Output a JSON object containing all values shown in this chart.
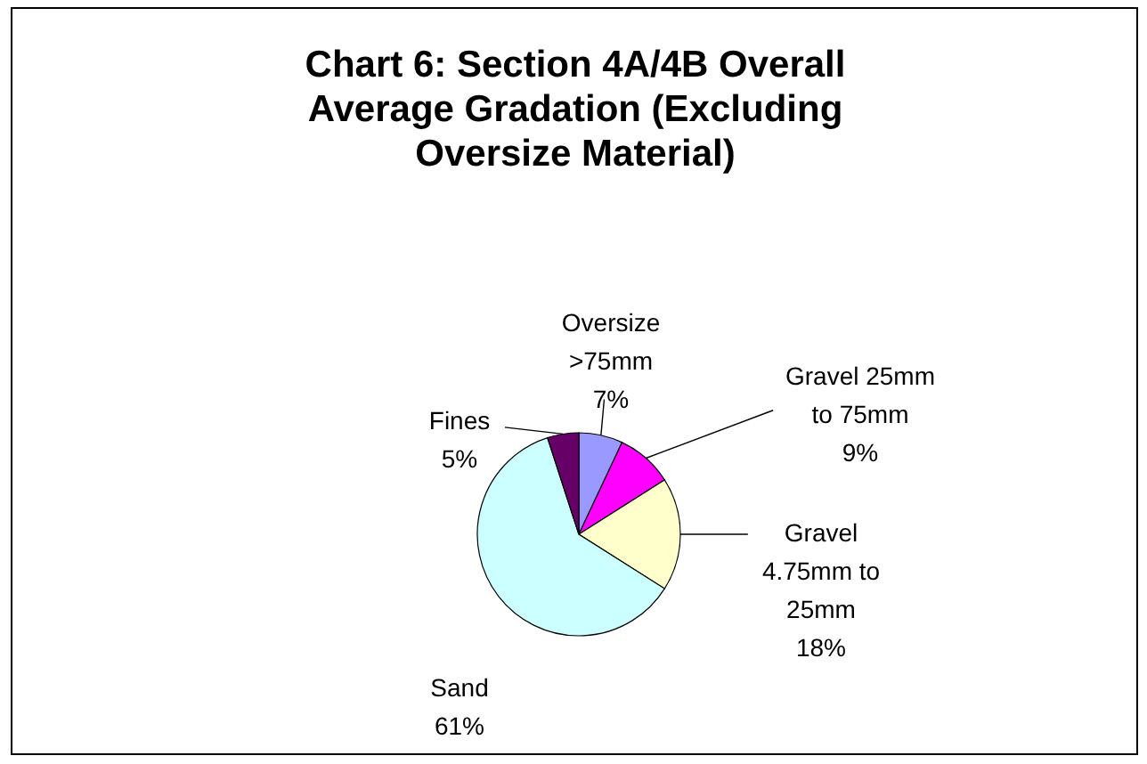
{
  "chart_data": {
    "type": "pie",
    "title": "Chart 6: Section 4A/4B Overall Average Gradation (Excluding Oversize Material)",
    "categories": [
      "Oversize >75mm",
      "Gravel 25mm to 75mm",
      "Gravel 4.75mm to 25mm",
      "Sand",
      "Fines"
    ],
    "values": [
      7,
      9,
      18,
      61,
      5
    ],
    "colors": [
      "#9999ff",
      "#ff00ff",
      "#ffffcc",
      "#ccffff",
      "#660066"
    ],
    "value_labels": [
      "7%",
      "9%",
      "18%",
      "61%",
      "5%"
    ]
  }
}
